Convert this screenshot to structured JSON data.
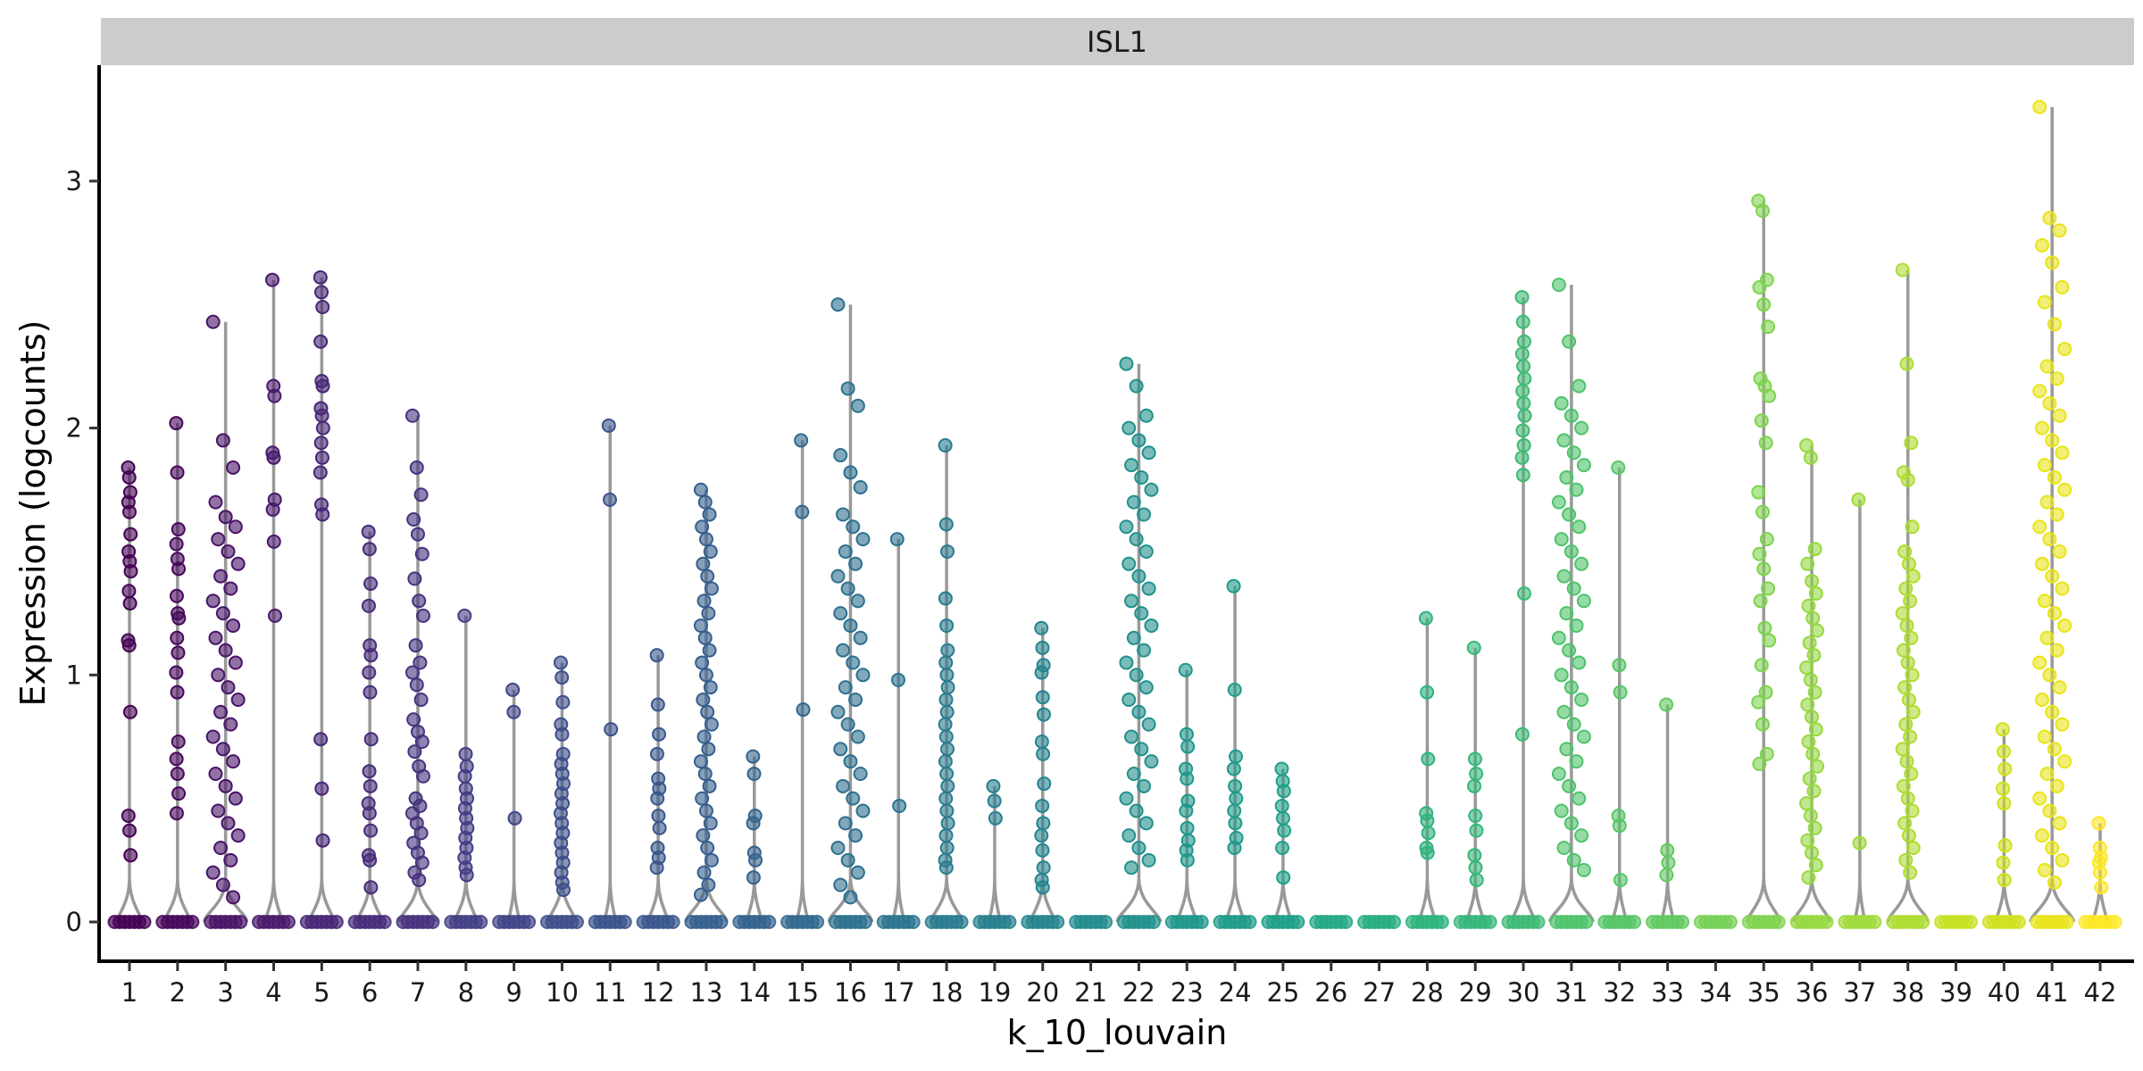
{
  "chart_data": {
    "type": "violin",
    "facet_label": "ISL1",
    "xlabel": "k_10_louvain",
    "ylabel": "Expression (logcounts)",
    "ylim": [
      -0.16,
      3.45
    ],
    "y_ticks": [
      0,
      1,
      2,
      3
    ],
    "grid": false,
    "legend": "none",
    "categories": [
      "1",
      "2",
      "3",
      "4",
      "5",
      "6",
      "7",
      "8",
      "9",
      "10",
      "11",
      "12",
      "13",
      "14",
      "15",
      "16",
      "17",
      "18",
      "19",
      "20",
      "21",
      "22",
      "23",
      "24",
      "25",
      "26",
      "27",
      "28",
      "29",
      "30",
      "31",
      "32",
      "33",
      "34",
      "35",
      "36",
      "37",
      "38",
      "39",
      "40",
      "41",
      "42"
    ],
    "colors": [
      "#440154",
      "#46075a",
      "#470d60",
      "#481467",
      "#481a6c",
      "#482071",
      "#472676",
      "#472c7a",
      "#46327e",
      "#453781",
      "#433e85",
      "#414487",
      "#3f4989",
      "#3d4e8a",
      "#3b528b",
      "#39568c",
      "#375b8d",
      "#355f8d",
      "#33638d",
      "#31688e",
      "#2f6c8e",
      "#2d708e",
      "#2c738e",
      "#2a788e",
      "#297b8e",
      "#277f8e",
      "#25848e",
      "#24878e",
      "#228b8d",
      "#21908c",
      "#20938c",
      "#1f978b",
      "#1e9b8a",
      "#1fa088",
      "#21a386",
      "#23a884",
      "#26ad81",
      "#2ab07f",
      "#2eb37c",
      "#35b779",
      "#3dba75",
      "#44be70",
      "#4ec36b",
      "#56c667",
      "#60ca60",
      "#6ccd5a",
      "#75d054",
      "#7fd34e",
      "#8bd646",
      "#95d840",
      "#a0da39",
      "#addc30",
      "#b8de29",
      "#c5e021",
      "#d0e11c",
      "#dde318",
      "#e8e419",
      "#fde725"
    ],
    "series": [
      {
        "cluster": "1",
        "max": 1.84,
        "values": [
          1.84,
          1.8,
          1.74,
          1.7,
          1.66,
          1.57,
          1.5,
          1.46,
          1.42,
          1.34,
          1.29,
          1.14,
          1.12,
          0.85,
          0.43,
          0.37,
          0.27
        ]
      },
      {
        "cluster": "2",
        "max": 2.02,
        "values": [
          2.02,
          1.82,
          1.59,
          1.53,
          1.47,
          1.43,
          1.32,
          1.25,
          1.23,
          1.15,
          1.09,
          1.01,
          0.93,
          0.73,
          0.66,
          0.6,
          0.52,
          0.44
        ]
      },
      {
        "cluster": "3",
        "max": 2.43,
        "values": [
          2.43,
          1.95,
          1.84,
          1.7,
          1.64,
          1.6,
          1.55,
          1.5,
          1.45,
          1.4,
          1.35,
          1.3,
          1.25,
          1.2,
          1.15,
          1.1,
          1.05,
          1.0,
          0.95,
          0.9,
          0.85,
          0.8,
          0.75,
          0.7,
          0.65,
          0.6,
          0.55,
          0.5,
          0.45,
          0.4,
          0.35,
          0.3,
          0.25,
          0.2,
          0.15,
          0.1
        ]
      },
      {
        "cluster": "4",
        "max": 2.6,
        "values": [
          2.6,
          2.17,
          2.13,
          1.9,
          1.88,
          1.71,
          1.67,
          1.54,
          1.24
        ]
      },
      {
        "cluster": "5",
        "max": 2.61,
        "values": [
          2.61,
          2.55,
          2.49,
          2.35,
          2.19,
          2.17,
          2.08,
          2.05,
          2.0,
          1.94,
          1.88,
          1.82,
          1.69,
          1.65,
          0.74,
          0.54,
          0.33
        ]
      },
      {
        "cluster": "6",
        "max": 1.58,
        "values": [
          1.58,
          1.51,
          1.37,
          1.28,
          1.12,
          1.08,
          1.01,
          0.93,
          0.74,
          0.61,
          0.55,
          0.48,
          0.44,
          0.37,
          0.27,
          0.25,
          0.14
        ]
      },
      {
        "cluster": "7",
        "max": 2.05,
        "values": [
          2.05,
          1.84,
          1.73,
          1.63,
          1.57,
          1.49,
          1.39,
          1.3,
          1.24,
          1.12,
          1.05,
          1.01,
          0.96,
          0.9,
          0.82,
          0.77,
          0.73,
          0.69,
          0.63,
          0.59,
          0.5,
          0.47,
          0.44,
          0.4,
          0.36,
          0.32,
          0.28,
          0.24,
          0.2,
          0.17
        ]
      },
      {
        "cluster": "8",
        "max": 1.24,
        "values": [
          1.24,
          0.68,
          0.63,
          0.59,
          0.54,
          0.5,
          0.46,
          0.42,
          0.38,
          0.34,
          0.3,
          0.26,
          0.22,
          0.19
        ]
      },
      {
        "cluster": "9",
        "max": 0.94,
        "values": [
          0.94,
          0.85,
          0.42
        ]
      },
      {
        "cluster": "10",
        "max": 1.05,
        "values": [
          1.05,
          0.99,
          0.89,
          0.8,
          0.76,
          0.68,
          0.64,
          0.6,
          0.56,
          0.52,
          0.48,
          0.44,
          0.4,
          0.36,
          0.32,
          0.28,
          0.24,
          0.2,
          0.16,
          0.13
        ]
      },
      {
        "cluster": "11",
        "max": 2.01,
        "values": [
          2.01,
          1.71,
          0.78
        ]
      },
      {
        "cluster": "12",
        "max": 1.08,
        "values": [
          1.08,
          0.88,
          0.76,
          0.68,
          0.58,
          0.54,
          0.5,
          0.43,
          0.38,
          0.3,
          0.26,
          0.22
        ]
      },
      {
        "cluster": "13",
        "max": 1.75,
        "values": [
          1.75,
          1.7,
          1.65,
          1.6,
          1.55,
          1.5,
          1.45,
          1.4,
          1.35,
          1.3,
          1.25,
          1.2,
          1.15,
          1.1,
          1.05,
          1.0,
          0.95,
          0.9,
          0.85,
          0.8,
          0.75,
          0.7,
          0.65,
          0.6,
          0.55,
          0.5,
          0.45,
          0.4,
          0.35,
          0.3,
          0.25,
          0.2,
          0.15,
          0.11
        ]
      },
      {
        "cluster": "14",
        "max": 0.67,
        "values": [
          0.67,
          0.6,
          0.43,
          0.4,
          0.28,
          0.25,
          0.18
        ]
      },
      {
        "cluster": "15",
        "max": 1.95,
        "values": [
          1.95,
          1.66,
          0.86
        ]
      },
      {
        "cluster": "16",
        "max": 2.5,
        "values": [
          2.5,
          2.16,
          2.09,
          1.89,
          1.82,
          1.76,
          1.65,
          1.6,
          1.55,
          1.5,
          1.45,
          1.4,
          1.35,
          1.3,
          1.25,
          1.2,
          1.15,
          1.1,
          1.05,
          1.0,
          0.95,
          0.9,
          0.85,
          0.8,
          0.75,
          0.7,
          0.65,
          0.6,
          0.55,
          0.5,
          0.45,
          0.4,
          0.35,
          0.3,
          0.25,
          0.2,
          0.15,
          0.1
        ]
      },
      {
        "cluster": "17",
        "max": 1.55,
        "values": [
          1.55,
          0.98,
          0.47
        ]
      },
      {
        "cluster": "18",
        "max": 1.93,
        "values": [
          1.93,
          1.61,
          1.5,
          1.31,
          1.2,
          1.1,
          1.05,
          1.0,
          0.95,
          0.9,
          0.85,
          0.8,
          0.75,
          0.7,
          0.65,
          0.6,
          0.55,
          0.5,
          0.45,
          0.4,
          0.35,
          0.3,
          0.25,
          0.22
        ]
      },
      {
        "cluster": "19",
        "max": 0.55,
        "values": [
          0.55,
          0.49,
          0.42
        ]
      },
      {
        "cluster": "20",
        "max": 1.19,
        "values": [
          1.19,
          1.11,
          1.04,
          1.01,
          0.91,
          0.84,
          0.73,
          0.68,
          0.56,
          0.47,
          0.4,
          0.35,
          0.29,
          0.22,
          0.17,
          0.14
        ]
      },
      {
        "cluster": "21",
        "max": 0.0,
        "values": []
      },
      {
        "cluster": "22",
        "max": 2.26,
        "values": [
          2.26,
          2.17,
          2.05,
          2.0,
          1.95,
          1.9,
          1.85,
          1.8,
          1.75,
          1.7,
          1.65,
          1.6,
          1.55,
          1.5,
          1.45,
          1.4,
          1.35,
          1.3,
          1.25,
          1.2,
          1.15,
          1.1,
          1.05,
          1.0,
          0.95,
          0.9,
          0.85,
          0.8,
          0.75,
          0.7,
          0.65,
          0.6,
          0.55,
          0.5,
          0.45,
          0.4,
          0.35,
          0.3,
          0.25,
          0.22
        ]
      },
      {
        "cluster": "23",
        "max": 1.02,
        "values": [
          1.02,
          0.76,
          0.71,
          0.62,
          0.58,
          0.49,
          0.45,
          0.38,
          0.33,
          0.29,
          0.25
        ]
      },
      {
        "cluster": "24",
        "max": 1.36,
        "values": [
          1.36,
          0.94,
          0.67,
          0.62,
          0.55,
          0.5,
          0.45,
          0.4,
          0.34,
          0.3
        ]
      },
      {
        "cluster": "25",
        "max": 0.62,
        "values": [
          0.62,
          0.57,
          0.53,
          0.47,
          0.42,
          0.37,
          0.3,
          0.18
        ]
      },
      {
        "cluster": "26",
        "max": 0.0,
        "values": []
      },
      {
        "cluster": "27",
        "max": 0.0,
        "values": []
      },
      {
        "cluster": "28",
        "max": 1.23,
        "values": [
          1.23,
          0.93,
          0.66,
          0.44,
          0.41,
          0.36,
          0.3,
          0.28
        ]
      },
      {
        "cluster": "29",
        "max": 1.11,
        "values": [
          1.11,
          0.66,
          0.6,
          0.55,
          0.43,
          0.37,
          0.27,
          0.22,
          0.17
        ]
      },
      {
        "cluster": "30",
        "max": 2.53,
        "values": [
          2.53,
          2.43,
          2.35,
          2.3,
          2.25,
          2.2,
          2.15,
          2.1,
          2.05,
          1.99,
          1.93,
          1.88,
          1.81,
          1.33,
          0.76
        ]
      },
      {
        "cluster": "31",
        "max": 2.58,
        "values": [
          2.58,
          2.35,
          2.17,
          2.1,
          2.05,
          2.0,
          1.95,
          1.9,
          1.85,
          1.8,
          1.75,
          1.7,
          1.65,
          1.6,
          1.55,
          1.5,
          1.45,
          1.4,
          1.35,
          1.3,
          1.25,
          1.2,
          1.15,
          1.1,
          1.05,
          1.0,
          0.95,
          0.9,
          0.85,
          0.8,
          0.75,
          0.7,
          0.65,
          0.6,
          0.55,
          0.5,
          0.45,
          0.4,
          0.35,
          0.3,
          0.25,
          0.21
        ]
      },
      {
        "cluster": "32",
        "max": 1.84,
        "values": [
          1.84,
          1.04,
          0.93,
          0.43,
          0.39,
          0.17
        ]
      },
      {
        "cluster": "33",
        "max": 0.88,
        "values": [
          0.88,
          0.29,
          0.24,
          0.19
        ]
      },
      {
        "cluster": "34",
        "max": 0.0,
        "values": []
      },
      {
        "cluster": "35",
        "max": 2.92,
        "values": [
          2.92,
          2.88,
          2.6,
          2.57,
          2.5,
          2.41,
          2.2,
          2.17,
          2.13,
          2.03,
          1.94,
          1.74,
          1.66,
          1.55,
          1.49,
          1.43,
          1.35,
          1.3,
          1.19,
          1.14,
          1.04,
          0.93,
          0.89,
          0.8,
          0.68,
          0.64
        ]
      },
      {
        "cluster": "36",
        "max": 1.93,
        "values": [
          1.93,
          1.88,
          1.51,
          1.45,
          1.38,
          1.33,
          1.28,
          1.23,
          1.18,
          1.13,
          1.08,
          1.03,
          0.98,
          0.93,
          0.88,
          0.83,
          0.78,
          0.73,
          0.68,
          0.63,
          0.58,
          0.53,
          0.48,
          0.43,
          0.38,
          0.33,
          0.28,
          0.23,
          0.18
        ]
      },
      {
        "cluster": "37",
        "max": 1.71,
        "values": [
          1.71,
          0.32
        ]
      },
      {
        "cluster": "38",
        "max": 2.64,
        "values": [
          2.64,
          2.26,
          1.94,
          1.82,
          1.79,
          1.6,
          1.5,
          1.45,
          1.4,
          1.35,
          1.3,
          1.25,
          1.2,
          1.15,
          1.1,
          1.05,
          1.0,
          0.95,
          0.9,
          0.85,
          0.8,
          0.75,
          0.7,
          0.65,
          0.6,
          0.55,
          0.5,
          0.45,
          0.4,
          0.35,
          0.3,
          0.25,
          0.2
        ]
      },
      {
        "cluster": "39",
        "max": 0.0,
        "values": []
      },
      {
        "cluster": "40",
        "max": 0.78,
        "values": [
          0.78,
          0.69,
          0.62,
          0.54,
          0.48,
          0.31,
          0.24,
          0.17
        ]
      },
      {
        "cluster": "41",
        "max": 3.3,
        "values": [
          3.3,
          2.85,
          2.8,
          2.74,
          2.67,
          2.57,
          2.51,
          2.42,
          2.32,
          2.25,
          2.2,
          2.15,
          2.1,
          2.05,
          2.0,
          1.95,
          1.9,
          1.85,
          1.8,
          1.75,
          1.7,
          1.65,
          1.6,
          1.55,
          1.5,
          1.45,
          1.4,
          1.35,
          1.3,
          1.25,
          1.2,
          1.15,
          1.1,
          1.05,
          1.0,
          0.95,
          0.9,
          0.85,
          0.8,
          0.75,
          0.7,
          0.65,
          0.6,
          0.55,
          0.5,
          0.45,
          0.4,
          0.35,
          0.3,
          0.25,
          0.21,
          0.16
        ]
      },
      {
        "cluster": "42",
        "max": 0.4,
        "values": [
          0.4,
          0.3,
          0.26,
          0.24,
          0.2,
          0.14
        ]
      }
    ]
  }
}
